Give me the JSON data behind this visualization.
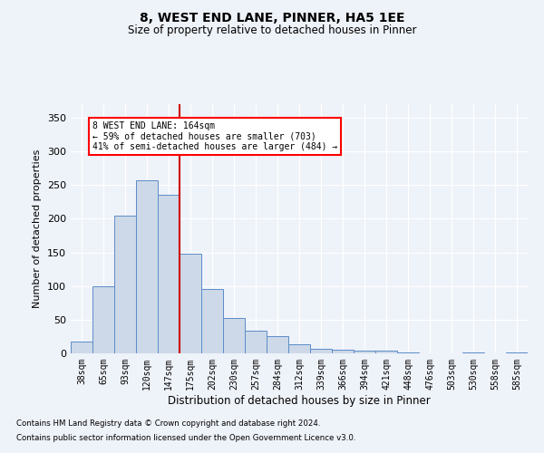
{
  "title1": "8, WEST END LANE, PINNER, HA5 1EE",
  "title2": "Size of property relative to detached houses in Pinner",
  "xlabel": "Distribution of detached houses by size in Pinner",
  "ylabel": "Number of detached properties",
  "footnote1": "Contains HM Land Registry data © Crown copyright and database right 2024.",
  "footnote2": "Contains public sector information licensed under the Open Government Licence v3.0.",
  "annotation_line1": "8 WEST END LANE: 164sqm",
  "annotation_line2": "← 59% of detached houses are smaller (703)",
  "annotation_line3": "41% of semi-detached houses are larger (484) →",
  "bar_labels": [
    "38sqm",
    "65sqm",
    "93sqm",
    "120sqm",
    "147sqm",
    "175sqm",
    "202sqm",
    "230sqm",
    "257sqm",
    "284sqm",
    "312sqm",
    "339sqm",
    "366sqm",
    "394sqm",
    "421sqm",
    "448sqm",
    "476sqm",
    "503sqm",
    "530sqm",
    "558sqm",
    "585sqm"
  ],
  "bar_values": [
    17,
    100,
    205,
    257,
    236,
    148,
    95,
    52,
    34,
    25,
    14,
    7,
    5,
    4,
    4,
    1,
    0,
    0,
    1,
    0,
    2
  ],
  "bar_color": "#cdd9e8",
  "bar_edge_color": "#5b8cc8",
  "red_line_x": 4.5,
  "red_line_color": "#cc0000",
  "background_color": "#eef2f9",
  "grid_color": "#ffffff",
  "ylim": [
    0,
    370
  ],
  "yticks": [
    0,
    50,
    100,
    150,
    200,
    250,
    300,
    350
  ]
}
